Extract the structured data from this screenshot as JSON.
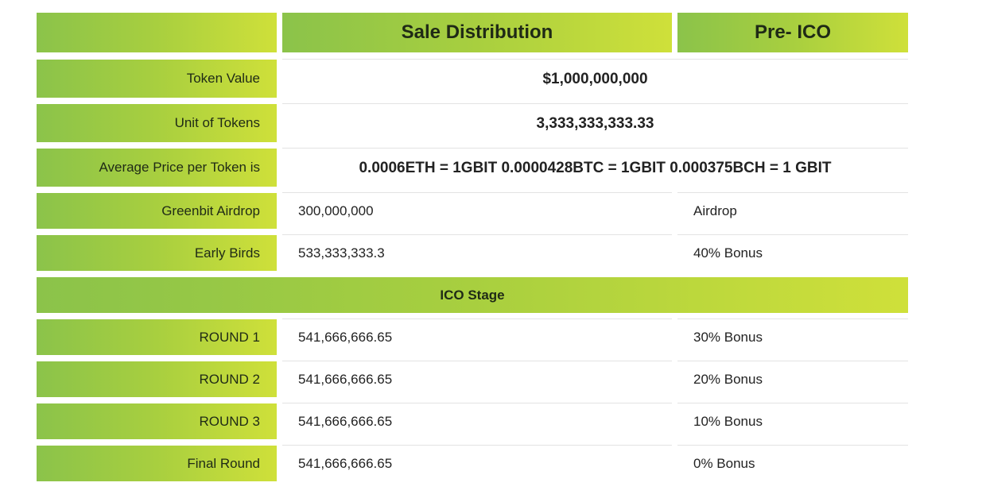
{
  "header": {
    "col1": "",
    "col2": "Sale Distribution",
    "col3": "Pre- ICO"
  },
  "summary_rows": [
    {
      "label": "Token Value",
      "value": "$1,000,000,000"
    },
    {
      "label": "Unit of Tokens",
      "value": "3,333,333,333.33"
    },
    {
      "label": "Average Price per Token is",
      "value": "0.0006ETH = 1GBIT 0.0000428BTC = 1GBIT 0.000375BCH = 1 GBIT"
    }
  ],
  "pre_ico_rows": [
    {
      "label": "Greenbit Airdrop",
      "amount": "300,000,000",
      "bonus": "Airdrop"
    },
    {
      "label": "Early Birds",
      "amount": "533,333,333.3",
      "bonus": "40% Bonus"
    }
  ],
  "stage": {
    "label": "ICO Stage"
  },
  "ico_rows": [
    {
      "label": "ROUND 1",
      "amount": "541,666,666.65",
      "bonus": "30% Bonus"
    },
    {
      "label": "ROUND 2",
      "amount": "541,666,666.65",
      "bonus": "20% Bonus"
    },
    {
      "label": "ROUND 3",
      "amount": "541,666,666.65",
      "bonus": "10% Bonus"
    },
    {
      "label": "Final Round",
      "amount": "541,666,666.65",
      "bonus": "0% Bonus"
    }
  ],
  "colors": {
    "gradient_start": "#8bc34a",
    "gradient_end": "#cfe03a",
    "text": "#222222"
  }
}
